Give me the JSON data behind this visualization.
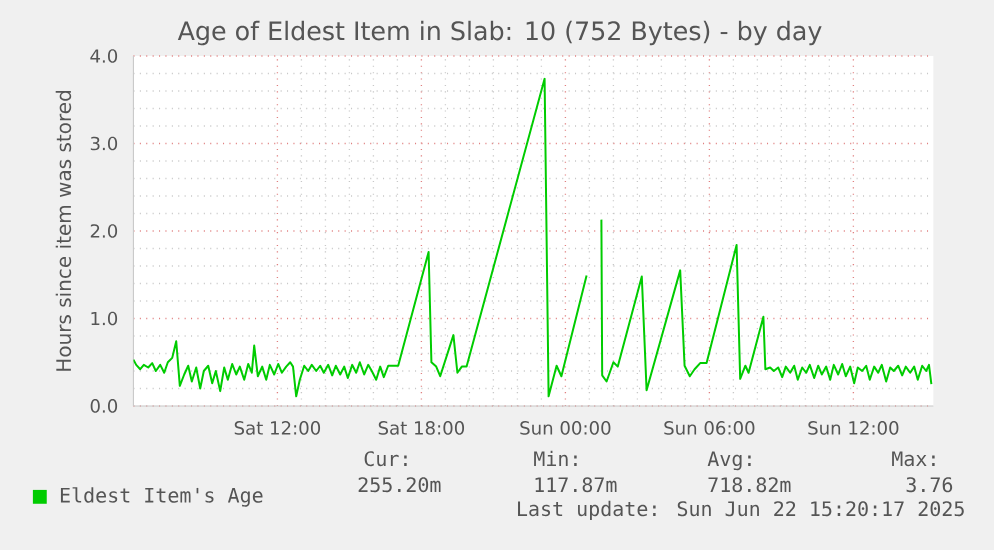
{
  "chart_data": {
    "type": "line",
    "title": "Age of Eldest Item in Slab: 10 (752 Bytes) - by day",
    "ylabel": "Hours since item was stored",
    "xlim": [
      "2025-06-21T06:00",
      "2025-06-22T15:20"
    ],
    "ylim": [
      0,
      4
    ],
    "xticks": [
      {
        "value": "2025-06-21T12:00",
        "label": "Sat 12:00"
      },
      {
        "value": "2025-06-21T18:00",
        "label": "Sat 18:00"
      },
      {
        "value": "2025-06-22T00:00",
        "label": "Sun 00:00"
      },
      {
        "value": "2025-06-22T06:00",
        "label": "Sun 06:00"
      },
      {
        "value": "2025-06-22T12:00",
        "label": "Sun 12:00"
      }
    ],
    "yticks": [
      {
        "value": 0,
        "label": "0.0"
      },
      {
        "value": 1,
        "label": "1.0"
      },
      {
        "value": 2,
        "label": "2.0"
      },
      {
        "value": 3,
        "label": "3.0"
      },
      {
        "value": 4,
        "label": "4.0"
      }
    ],
    "grid": true,
    "legend": "bottom left",
    "series": [
      {
        "name": "Eldest Item's Age",
        "color": "#00cc00",
        "x": [
          "2025-06-21T06:00",
          "2025-06-21T06:07",
          "2025-06-21T06:17",
          "2025-06-21T06:26",
          "2025-06-21T06:37",
          "2025-06-21T06:47",
          "2025-06-21T06:56",
          "2025-06-21T07:07",
          "2025-06-21T07:17",
          "2025-06-21T07:26",
          "2025-06-21T07:37",
          "2025-06-21T07:47",
          "2025-06-21T07:56",
          "2025-06-21T08:07",
          "2025-06-21T08:17",
          "2025-06-21T08:26",
          "2025-06-21T08:37",
          "2025-06-21T08:47",
          "2025-06-21T08:56",
          "2025-06-21T09:07",
          "2025-06-21T09:17",
          "2025-06-21T09:26",
          "2025-06-21T09:37",
          "2025-06-21T09:47",
          "2025-06-21T09:56",
          "2025-06-21T10:07",
          "2025-06-21T10:17",
          "2025-06-21T10:26",
          "2025-06-21T10:37",
          "2025-06-21T10:47",
          "2025-06-21T10:56",
          "2025-06-21T11:02",
          "2025-06-21T11:11",
          "2025-06-21T11:22",
          "2025-06-21T11:32",
          "2025-06-21T11:41",
          "2025-06-21T11:52",
          "2025-06-21T12:02",
          "2025-06-21T12:11",
          "2025-06-21T12:22",
          "2025-06-21T12:32",
          "2025-06-21T12:39",
          "2025-06-21T12:47",
          "2025-06-21T12:56",
          "2025-06-21T13:07",
          "2025-06-21T13:17",
          "2025-06-21T13:26",
          "2025-06-21T13:37",
          "2025-06-21T13:47",
          "2025-06-21T13:56",
          "2025-06-21T14:07",
          "2025-06-21T14:17",
          "2025-06-21T14:26",
          "2025-06-21T14:37",
          "2025-06-21T14:47",
          "2025-06-21T14:56",
          "2025-06-21T15:07",
          "2025-06-21T15:17",
          "2025-06-21T15:26",
          "2025-06-21T15:37",
          "2025-06-21T15:47",
          "2025-06-21T15:56",
          "2025-06-21T16:07",
          "2025-06-21T16:17",
          "2025-06-21T16:26",
          "2025-06-21T16:37",
          "2025-06-21T16:47",
          "2025-06-21T17:02",
          "2025-06-21T18:18",
          "2025-06-21T18:25",
          "2025-06-21T18:37",
          "2025-06-21T18:47",
          "2025-06-21T19:20",
          "2025-06-21T19:30",
          "2025-06-21T19:41",
          "2025-06-21T19:53",
          "2025-06-21T23:08",
          "2025-06-21T23:18",
          "2025-06-21T23:38",
          "2025-06-21T23:50",
          "2025-06-22T00:53",
          "2025-06-22T01:11",
          "2025-06-22T01:30",
          "2025-06-22T01:32",
          "2025-06-22T01:43",
          "2025-06-22T02:00",
          "2025-06-22T02:11",
          "2025-06-22T03:11",
          "2025-06-22T03:23",
          "2025-06-22T04:47",
          "2025-06-22T04:58",
          "2025-06-22T05:11",
          "2025-06-22T05:23",
          "2025-06-22T05:37",
          "2025-06-22T05:53",
          "2025-06-22T07:08",
          "2025-06-22T07:17",
          "2025-06-22T07:30",
          "2025-06-22T07:38",
          "2025-06-22T08:15",
          "2025-06-22T08:20",
          "2025-06-22T08:32",
          "2025-06-22T08:41",
          "2025-06-22T08:52",
          "2025-06-22T09:02",
          "2025-06-22T09:11",
          "2025-06-22T09:22",
          "2025-06-22T09:32",
          "2025-06-22T09:41",
          "2025-06-22T09:52",
          "2025-06-22T10:02",
          "2025-06-22T10:11",
          "2025-06-22T10:22",
          "2025-06-22T10:32",
          "2025-06-22T10:41",
          "2025-06-22T10:52",
          "2025-06-22T11:02",
          "2025-06-22T11:11",
          "2025-06-22T11:22",
          "2025-06-22T11:32",
          "2025-06-22T11:41",
          "2025-06-22T11:52",
          "2025-06-22T12:02",
          "2025-06-22T12:11",
          "2025-06-22T12:22",
          "2025-06-22T12:32",
          "2025-06-22T12:41",
          "2025-06-22T12:52",
          "2025-06-22T13:02",
          "2025-06-22T13:11",
          "2025-06-22T13:22",
          "2025-06-22T13:32",
          "2025-06-22T13:41",
          "2025-06-22T13:52",
          "2025-06-22T14:02",
          "2025-06-22T14:11",
          "2025-06-22T14:22",
          "2025-06-22T14:32",
          "2025-06-22T14:41",
          "2025-06-22T14:52",
          "2025-06-22T15:02",
          "2025-06-22T15:09",
          "2025-06-22T15:15"
        ],
        "values": [
          0.53,
          0.47,
          0.42,
          0.47,
          0.44,
          0.49,
          0.4,
          0.47,
          0.38,
          0.5,
          0.55,
          0.74,
          0.23,
          0.36,
          0.46,
          0.28,
          0.44,
          0.2,
          0.4,
          0.46,
          0.26,
          0.4,
          0.17,
          0.44,
          0.3,
          0.48,
          0.36,
          0.45,
          0.3,
          0.48,
          0.38,
          0.69,
          0.34,
          0.45,
          0.3,
          0.47,
          0.36,
          0.48,
          0.38,
          0.45,
          0.5,
          0.45,
          0.11,
          0.3,
          0.46,
          0.4,
          0.47,
          0.4,
          0.46,
          0.38,
          0.47,
          0.35,
          0.46,
          0.36,
          0.45,
          0.32,
          0.47,
          0.38,
          0.5,
          0.36,
          0.47,
          0.4,
          0.3,
          0.45,
          0.33,
          0.46,
          0.46,
          0.46,
          1.76,
          0.5,
          0.45,
          0.34,
          0.81,
          0.38,
          0.45,
          0.45,
          3.74,
          0.11,
          0.46,
          0.34,
          1.49,
          null,
          2.13,
          0.35,
          0.28,
          0.5,
          0.45,
          1.48,
          0.18,
          1.55,
          0.46,
          0.34,
          0.42,
          0.49,
          0.49,
          1.84,
          0.31,
          0.46,
          0.38,
          1.02,
          0.42,
          0.44,
          0.4,
          0.44,
          0.33,
          0.45,
          0.38,
          0.46,
          0.3,
          0.44,
          0.38,
          0.47,
          0.32,
          0.46,
          0.36,
          0.45,
          0.3,
          0.47,
          0.36,
          0.48,
          0.34,
          0.45,
          0.26,
          0.44,
          0.4,
          0.46,
          0.3,
          0.45,
          0.38,
          0.47,
          0.28,
          0.44,
          0.4,
          0.46,
          0.35,
          0.45,
          0.38,
          0.45,
          0.3,
          0.46,
          0.4,
          0.47,
          0.25
        ]
      }
    ],
    "annotations": [
      "Cur:",
      "Min:",
      "Avg:",
      "Max:",
      "255.20m",
      "117.87m",
      "718.82m",
      "3.76",
      "Last update: Sun Jun 22 15:20:17 2025"
    ]
  }
}
